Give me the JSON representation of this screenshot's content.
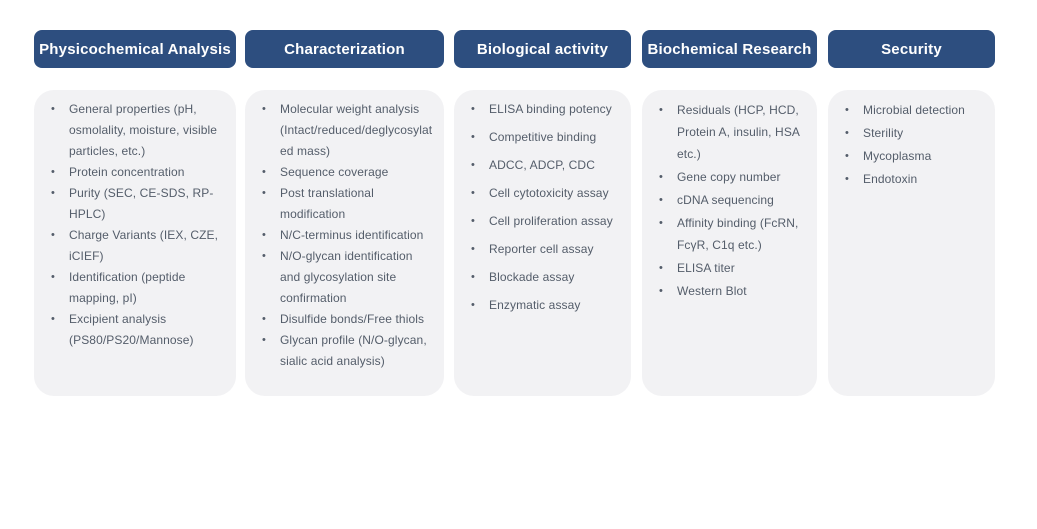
{
  "colors": {
    "header_bg": "#2d4e7f",
    "header_text": "#ffffff",
    "card_bg": "#f2f2f4",
    "item_text": "#545d6a"
  },
  "icons": {
    "bullet_glyph": "•"
  },
  "columns": [
    {
      "title": "Physicochemical Analysis",
      "items": [
        "General properties (pH, osmolality, moisture, visible particles, etc.)",
        "Protein concentration",
        "Purity (SEC,  CE-SDS, RP-HPLC)",
        "Charge Variants (IEX, CZE, iCIEF)",
        "Identification (peptide mapping, pI)",
        "Excipient analysis (PS80/PS20/Mannose)"
      ]
    },
    {
      "title": "Characterization",
      "items": [
        "Molecular weight analysis (Intact/reduced/deglycosylated mass)",
        "Sequence coverage",
        "Post translational modification",
        "N/C-terminus identification",
        "N/O-glycan identification and glycosylation site confirmation",
        "Disulfide bonds/Free thiols",
        "Glycan profile (N/O-glycan, sialic acid analysis)"
      ]
    },
    {
      "title": "Biological activity",
      "items": [
        "ELISA binding potency",
        "Competitive binding",
        "ADCC, ADCP, CDC",
        "Cell cytotoxicity assay",
        "Cell proliferation assay",
        "Reporter cell assay",
        "Blockade assay",
        "Enzymatic assay"
      ]
    },
    {
      "title": "Biochemical Research",
      "items": [
        "Residuals (HCP, HCD, Protein A, insulin, HSA etc.)",
        "Gene copy number",
        "cDNA sequencing",
        "Affinity binding (FcRN, FcγR, C1q etc.)",
        "ELISA titer",
        "Western Blot"
      ]
    },
    {
      "title": "Security",
      "items": [
        "Microbial detection",
        "Sterility",
        "Mycoplasma",
        "Endotoxin"
      ]
    }
  ]
}
